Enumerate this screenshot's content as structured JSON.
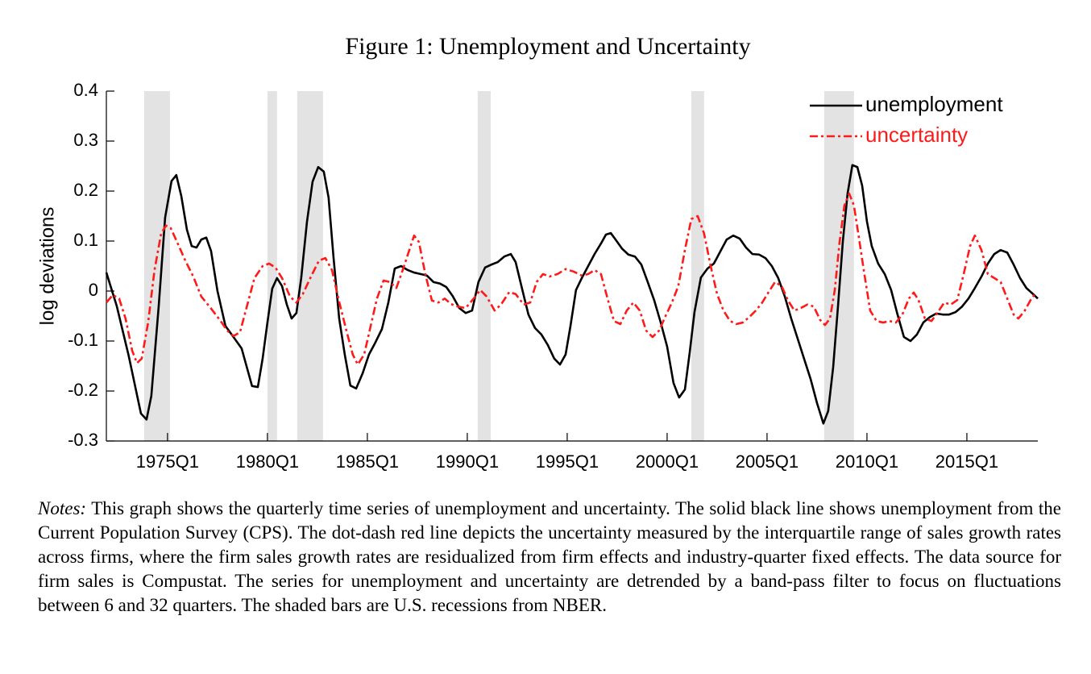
{
  "chart_data": {
    "type": "line",
    "title": "Figure 1: Unemployment and Uncertainty",
    "y_label": "log deviations",
    "xlim": [
      1971.94,
      2018.55
    ],
    "xticks": [
      {
        "value": 1975,
        "label": "1975Q1"
      },
      {
        "value": 1980,
        "label": "1980Q1"
      },
      {
        "value": 1985,
        "label": "1985Q1"
      },
      {
        "value": 1990,
        "label": "1990Q1"
      },
      {
        "value": 1995,
        "label": "1995Q1"
      },
      {
        "value": 2000,
        "label": "2000Q1"
      },
      {
        "value": 2005,
        "label": "2005Q1"
      },
      {
        "value": 2010,
        "label": "2010Q1"
      },
      {
        "value": 2015,
        "label": "2015Q1"
      }
    ],
    "ylim": [
      -0.3,
      0.4
    ],
    "yticks": [
      -0.3,
      -0.2,
      -0.1,
      0,
      0.1,
      0.2,
      0.3,
      0.4
    ],
    "grid": false,
    "legend": "top-right",
    "shaded_periods": [
      [
        1973.83,
        1975.12
      ],
      [
        1980.0,
        1980.48
      ],
      [
        1981.49,
        1982.78
      ],
      [
        1990.52,
        1991.17
      ],
      [
        2001.21,
        2001.85
      ],
      [
        2007.86,
        2009.35
      ]
    ],
    "shade_color": "#e3e3e3",
    "series": [
      {
        "name": "unemployment",
        "color": "#000000",
        "style": "solid",
        "x": [
          1971.94,
          1972.46,
          1973.06,
          1973.67,
          1973.95,
          1974.19,
          1974.56,
          1974.88,
          1975.2,
          1975.44,
          1975.69,
          1975.97,
          1976.21,
          1976.45,
          1976.69,
          1976.94,
          1977.18,
          1977.5,
          1977.9,
          1978.3,
          1978.71,
          1979.23,
          1979.52,
          1979.76,
          1980.0,
          1980.24,
          1980.48,
          1980.73,
          1980.97,
          1981.21,
          1981.45,
          1981.69,
          1981.98,
          1982.26,
          1982.54,
          1982.82,
          1983.06,
          1983.31,
          1983.59,
          1983.87,
          1984.15,
          1984.44,
          1984.76,
          1985.08,
          1985.4,
          1985.73,
          1986.05,
          1986.37,
          1986.69,
          1987.02,
          1987.34,
          1987.66,
          1987.98,
          1988.31,
          1988.63,
          1988.95,
          1989.27,
          1989.6,
          1989.92,
          1990.24,
          1990.56,
          1990.89,
          1991.21,
          1991.53,
          1991.85,
          1992.18,
          1992.42,
          1992.74,
          1993.06,
          1993.39,
          1993.71,
          1994.03,
          1994.35,
          1994.64,
          1994.92,
          1995.16,
          1995.44,
          1995.73,
          1996.05,
          1996.37,
          1996.69,
          1996.94,
          1997.18,
          1997.42,
          1997.74,
          1998.06,
          1998.39,
          1998.71,
          1999.03,
          1999.35,
          1999.68,
          2000.0,
          2000.32,
          2000.6,
          2000.89,
          2001.13,
          2001.37,
          2001.69,
          2002.02,
          2002.34,
          2002.66,
          2002.98,
          2003.31,
          2003.63,
          2003.95,
          2004.27,
          2004.6,
          2004.92,
          2005.24,
          2005.56,
          2005.89,
          2006.21,
          2006.53,
          2006.85,
          2007.18,
          2007.5,
          2007.82,
          2008.06,
          2008.31,
          2008.55,
          2008.79,
          2009.03,
          2009.27,
          2009.52,
          2009.76,
          2010.0,
          2010.24,
          2010.56,
          2010.89,
          2011.21,
          2011.53,
          2011.85,
          2012.18,
          2012.5,
          2012.82,
          2013.15,
          2013.47,
          2013.79,
          2014.11,
          2014.44,
          2014.76,
          2015.08,
          2015.4,
          2015.73,
          2016.05,
          2016.37,
          2016.69,
          2017.02,
          2017.34,
          2017.66,
          2017.98,
          2018.31,
          2018.55
        ],
        "values": [
          0.037,
          -0.03,
          -0.13,
          -0.245,
          -0.257,
          -0.21,
          -0.03,
          0.147,
          0.22,
          0.232,
          0.19,
          0.123,
          0.09,
          0.087,
          0.103,
          0.107,
          0.08,
          0.0,
          -0.07,
          -0.092,
          -0.115,
          -0.19,
          -0.192,
          -0.135,
          -0.063,
          0.005,
          0.026,
          0.01,
          -0.027,
          -0.055,
          -0.044,
          0.026,
          0.139,
          0.219,
          0.248,
          0.239,
          0.187,
          0.066,
          -0.055,
          -0.127,
          -0.189,
          -0.195,
          -0.165,
          -0.127,
          -0.103,
          -0.076,
          -0.023,
          0.045,
          0.05,
          0.042,
          0.037,
          0.034,
          0.031,
          0.018,
          0.015,
          0.008,
          -0.01,
          -0.034,
          -0.044,
          -0.039,
          0.018,
          0.047,
          0.053,
          0.058,
          0.069,
          0.074,
          0.058,
          0.005,
          -0.047,
          -0.074,
          -0.087,
          -0.108,
          -0.135,
          -0.147,
          -0.127,
          -0.071,
          0.002,
          0.026,
          0.05,
          0.074,
          0.095,
          0.113,
          0.116,
          0.103,
          0.085,
          0.073,
          0.069,
          0.053,
          0.018,
          -0.018,
          -0.063,
          -0.111,
          -0.184,
          -0.213,
          -0.197,
          -0.123,
          -0.042,
          0.027,
          0.045,
          0.055,
          0.079,
          0.103,
          0.111,
          0.105,
          0.087,
          0.074,
          0.073,
          0.066,
          0.05,
          0.026,
          -0.011,
          -0.055,
          -0.095,
          -0.135,
          -0.176,
          -0.224,
          -0.265,
          -0.24,
          -0.152,
          -0.031,
          0.098,
          0.195,
          0.252,
          0.248,
          0.211,
          0.139,
          0.09,
          0.055,
          0.034,
          0.002,
          -0.047,
          -0.092,
          -0.1,
          -0.087,
          -0.063,
          -0.052,
          -0.045,
          -0.047,
          -0.047,
          -0.042,
          -0.031,
          -0.015,
          0.006,
          0.029,
          0.055,
          0.074,
          0.082,
          0.077,
          0.053,
          0.026,
          0.006,
          -0.006,
          -0.015
        ]
      },
      {
        "name": "uncertainty",
        "color": "#ff1a1a",
        "style": "dash-dot",
        "x": [
          1971.94,
          1972.26,
          1972.58,
          1972.9,
          1973.23,
          1973.47,
          1973.71,
          1974.03,
          1974.35,
          1974.68,
          1974.92,
          1975.16,
          1975.48,
          1975.89,
          1976.29,
          1976.69,
          1977.18,
          1977.66,
          1977.98,
          1978.31,
          1978.63,
          1978.95,
          1979.35,
          1979.76,
          1980.08,
          1980.4,
          1980.73,
          1981.13,
          1981.45,
          1981.77,
          1982.18,
          1982.58,
          1982.9,
          1983.23,
          1983.55,
          1983.95,
          1984.27,
          1984.52,
          1984.84,
          1985.16,
          1985.48,
          1985.81,
          1986.13,
          1986.45,
          1986.77,
          1987.1,
          1987.34,
          1987.58,
          1987.9,
          1988.23,
          1988.55,
          1988.87,
          1989.19,
          1989.52,
          1989.92,
          1990.32,
          1990.65,
          1990.97,
          1991.37,
          1991.69,
          1992.1,
          1992.42,
          1992.82,
          1993.15,
          1993.47,
          1993.79,
          1994.11,
          1994.52,
          1994.92,
          1995.32,
          1995.73,
          1996.05,
          1996.37,
          1996.69,
          1997.02,
          1997.34,
          1997.66,
          1997.98,
          1998.31,
          1998.63,
          1998.95,
          1999.27,
          1999.6,
          1999.92,
          2000.24,
          2000.56,
          2000.89,
          2001.21,
          2001.53,
          2001.85,
          2002.18,
          2002.5,
          2002.82,
          2003.15,
          2003.47,
          2003.79,
          2004.11,
          2004.44,
          2004.76,
          2005.08,
          2005.4,
          2005.73,
          2006.05,
          2006.37,
          2006.69,
          2007.02,
          2007.34,
          2007.66,
          2007.9,
          2008.15,
          2008.39,
          2008.63,
          2008.87,
          2009.11,
          2009.35,
          2009.6,
          2009.84,
          2010.16,
          2010.48,
          2010.81,
          2011.13,
          2011.45,
          2011.77,
          2012.1,
          2012.34,
          2012.58,
          2012.9,
          2013.23,
          2013.55,
          2013.87,
          2014.19,
          2014.52,
          2014.84,
          2015.16,
          2015.4,
          2015.73,
          2016.05,
          2016.37,
          2016.69,
          2017.02,
          2017.34,
          2017.58,
          2017.9,
          2018.23,
          2018.47
        ],
        "values": [
          -0.023,
          -0.008,
          -0.015,
          -0.055,
          -0.119,
          -0.144,
          -0.135,
          -0.063,
          0.042,
          0.115,
          0.131,
          0.126,
          0.098,
          0.061,
          0.029,
          -0.011,
          -0.035,
          -0.06,
          -0.079,
          -0.09,
          -0.082,
          -0.034,
          0.026,
          0.05,
          0.055,
          0.047,
          0.026,
          -0.011,
          -0.023,
          -0.006,
          0.029,
          0.061,
          0.066,
          0.042,
          -0.015,
          -0.079,
          -0.127,
          -0.147,
          -0.127,
          -0.071,
          -0.015,
          0.021,
          0.018,
          0.006,
          0.042,
          0.082,
          0.111,
          0.098,
          0.034,
          -0.019,
          -0.023,
          -0.015,
          -0.026,
          -0.031,
          -0.034,
          -0.015,
          0.002,
          -0.011,
          -0.039,
          -0.027,
          -0.002,
          -0.006,
          -0.027,
          -0.023,
          0.018,
          0.034,
          0.029,
          0.034,
          0.044,
          0.039,
          0.031,
          0.034,
          0.042,
          0.034,
          -0.015,
          -0.06,
          -0.066,
          -0.039,
          -0.023,
          -0.039,
          -0.079,
          -0.092,
          -0.079,
          -0.05,
          -0.023,
          0.01,
          0.082,
          0.144,
          0.15,
          0.115,
          0.05,
          -0.006,
          -0.039,
          -0.06,
          -0.066,
          -0.063,
          -0.052,
          -0.039,
          -0.023,
          -0.002,
          0.018,
          0.01,
          -0.019,
          -0.039,
          -0.034,
          -0.027,
          -0.031,
          -0.058,
          -0.068,
          -0.055,
          0.002,
          0.098,
          0.171,
          0.195,
          0.171,
          0.106,
          0.042,
          -0.039,
          -0.06,
          -0.063,
          -0.06,
          -0.063,
          -0.047,
          -0.015,
          -0.003,
          -0.018,
          -0.055,
          -0.06,
          -0.042,
          -0.023,
          -0.027,
          -0.018,
          0.034,
          0.09,
          0.111,
          0.082,
          0.034,
          0.026,
          0.018,
          -0.015,
          -0.047,
          -0.055,
          -0.039,
          -0.015,
          -0.003
        ]
      }
    ]
  },
  "notes": {
    "label": "Notes:",
    "text": "This graph shows the quarterly time series of unemployment and uncertainty.  The solid black line shows unemployment from the Current Population Survey (CPS). The dot-dash red line depicts the uncertainty measured by the interquartile range of sales growth rates across firms, where the firm sales growth rates are residualized from firm effects and industry-quarter fixed effects. The data source for firm sales is Compustat.  The series for unemployment and uncertainty are detrended by a band-pass filter to focus on fluctuations between 6 and 32 quarters. The shaded bars are U.S. recessions from NBER."
  }
}
